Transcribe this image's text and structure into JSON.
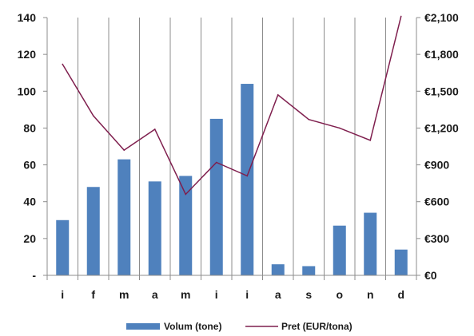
{
  "chart_data": {
    "type": "bar",
    "categories": [
      "i",
      "f",
      "m",
      "a",
      "m",
      "i",
      "i",
      "a",
      "s",
      "o",
      "n",
      "d"
    ],
    "series": [
      {
        "name": "Volum (tone)",
        "type": "bar",
        "axis": "left",
        "color": "#4F81BD",
        "values": [
          30,
          48,
          63,
          51,
          54,
          85,
          104,
          6,
          5,
          27,
          34,
          14
        ]
      },
      {
        "name": "Pret (EUR/tona)",
        "type": "line",
        "axis": "right",
        "color": "#7F1F4E",
        "values": [
          1720,
          1300,
          1020,
          1190,
          660,
          920,
          810,
          1470,
          1270,
          1200,
          1100,
          2110
        ]
      }
    ],
    "ylim": [
      0,
      140
    ],
    "y2lim": [
      0,
      2100
    ],
    "yticks": [
      "-",
      "20",
      "40",
      "60",
      "80",
      "100",
      "120",
      "140"
    ],
    "y2ticks": [
      "€0",
      "€300",
      "€600",
      "€900",
      "€1,200",
      "€1,500",
      "€1,800",
      "€2,100"
    ],
    "grid": true,
    "legend": "bottom"
  }
}
